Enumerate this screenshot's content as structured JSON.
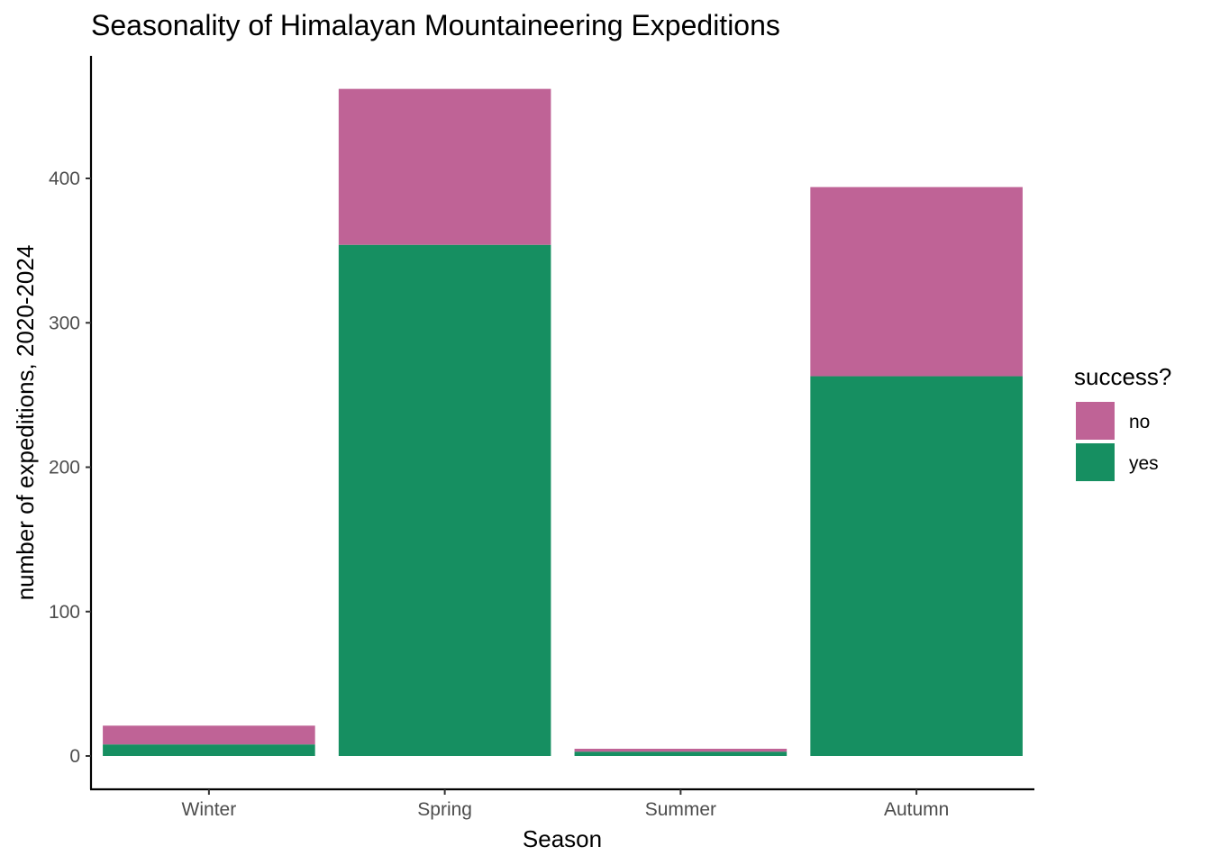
{
  "chart_data": {
    "type": "bar",
    "stacked": true,
    "title": "Seasonality of Himalayan Mountaineering Expeditions",
    "xlabel": "Season",
    "ylabel": "number of expeditions, 2020-2024",
    "categories": [
      "Winter",
      "Spring",
      "Summer",
      "Autumn"
    ],
    "series": [
      {
        "name": "yes",
        "color": "#168F61",
        "values": [
          8,
          354,
          3,
          263
        ]
      },
      {
        "name": "no",
        "color": "#BF6396",
        "values": [
          13,
          108,
          2,
          131
        ]
      }
    ],
    "yticks": [
      0,
      100,
      200,
      300,
      400
    ],
    "ylim": [
      -23,
      485
    ],
    "grid": false,
    "legend": {
      "title": "success?",
      "position": "right",
      "items": [
        "no",
        "yes"
      ]
    }
  }
}
